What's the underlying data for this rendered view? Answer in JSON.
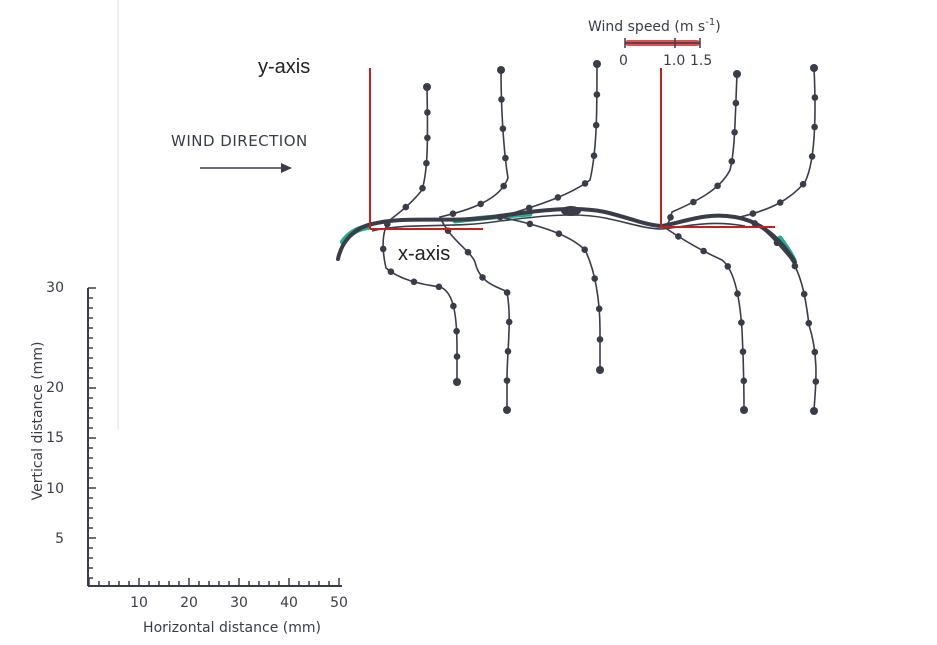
{
  "annotations": {
    "y_axis": "y-axis",
    "x_axis": "x-axis"
  },
  "wind_direction_label": "WIND DIRECTION",
  "scale_bar": {
    "title": "Wind speed (m s",
    "title_sup": "-1",
    "title_close": ")",
    "ticks": [
      "0",
      "1.0",
      "1.5"
    ]
  },
  "axes": {
    "y_label": "Vertical distance (mm)",
    "x_label": "Horizontal distance (mm)",
    "y_ticks": [
      "30",
      "20",
      "15",
      "10",
      "5"
    ],
    "x_ticks": [
      "10",
      "20",
      "30",
      "40",
      "50"
    ]
  },
  "colors": {
    "ink": "#3a3c48",
    "annotation": "#c81e1e",
    "scale_highlight": "#e05050",
    "leaf_highlight": "#1fae8c"
  }
}
